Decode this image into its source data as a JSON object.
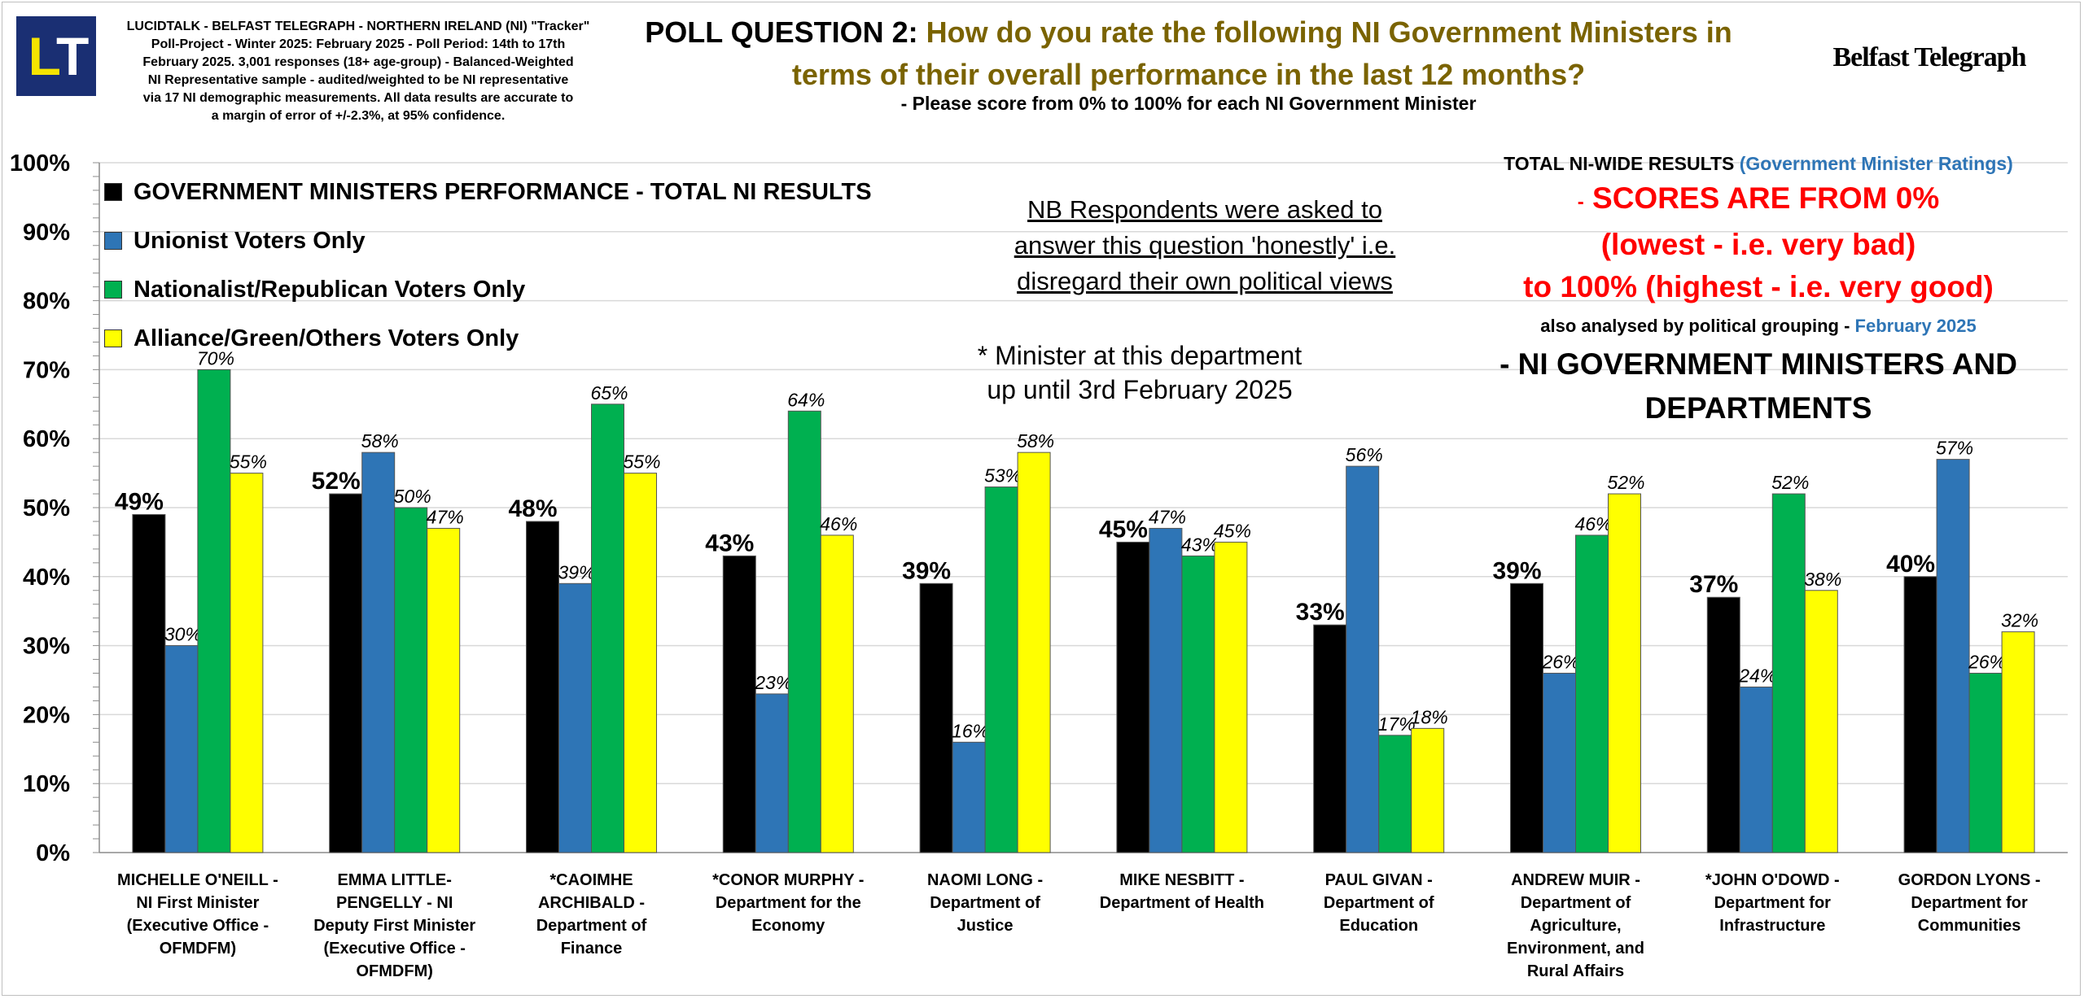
{
  "header": {
    "logo_text": "LT",
    "meta_lines": [
      "LUCIDTALK - BELFAST TELEGRAPH - NORTHERN IRELAND (NI) \"Tracker\"",
      "Poll-Project - Winter 2025: February 2025 - Poll Period: 14th to 17th",
      "February 2025. 3,001 responses (18+ age-group) - Balanced-Weighted",
      "NI Representative sample - audited/weighted to be NI representative",
      "via 17 NI demographic measurements. All data results are accurate to",
      "a margin of error of +/-2.3%, at 95% confidence."
    ],
    "question_lead": "POLL QUESTION 2:",
    "question_text": "How do you rate the following NI Government Ministers in terms of their overall performance in the last 12 months?",
    "subquestion": "- Please score from 0% to 100% for each NI Government Minister",
    "brand": "Belfast Telegraph"
  },
  "legend": [
    {
      "label": "GOVERNMENT MINISTERS PERFORMANCE - TOTAL NI RESULTS",
      "color": "#000000"
    },
    {
      "label": "Unionist Voters Only",
      "color": "#2e75b6"
    },
    {
      "label": "Nationalist/Republican Voters Only",
      "color": "#00b050"
    },
    {
      "label": "Alliance/Green/Others Voters Only",
      "color": "#ffff00"
    }
  ],
  "notes": {
    "nb_lines": [
      "NB Respondents were asked to",
      "answer this question 'honestly' i.e.",
      "disregard their own political views"
    ],
    "minister_lines": [
      "* Minister at this department",
      "up until 3rd February 2025"
    ]
  },
  "right_panel": {
    "total_prefix": "TOTAL NI-WIDE RESULTS",
    "total_blue": "(Government Minister  Ratings)",
    "red_dash": "-",
    "red_line1": "SCORES ARE FROM 0%",
    "red_line2": "(lowest - i.e. very bad)",
    "red_line3": "to 100% (highest - i.e. very good)",
    "also_prefix": "also analysed by political grouping -",
    "also_blue": "February 2025",
    "dept_line1": "- NI GOVERNMENT MINISTERS AND",
    "dept_line2": "DEPARTMENTS"
  },
  "chart_data": {
    "type": "bar",
    "ylim": [
      0,
      100
    ],
    "yticks": [
      "0%",
      "10%",
      "20%",
      "30%",
      "40%",
      "50%",
      "60%",
      "70%",
      "80%",
      "90%",
      "100%"
    ],
    "grid": true,
    "categories": [
      [
        "MICHELLE O'NEILL -",
        "NI First Minister",
        "(Executive Office -",
        "OFMDFM)"
      ],
      [
        "EMMA LITTLE-",
        "PENGELLY - NI",
        "Deputy First Minister",
        "(Executive Office -",
        "OFMDFM)"
      ],
      [
        "*CAOIMHE",
        "ARCHIBALD -",
        "Department of",
        "Finance"
      ],
      [
        "*CONOR MURPHY -",
        "Department for the",
        "Economy"
      ],
      [
        "NAOMI LONG -",
        "Department of",
        "Justice"
      ],
      [
        "MIKE NESBITT -",
        "Department of Health"
      ],
      [
        "PAUL GIVAN -",
        "Department of",
        "Education"
      ],
      [
        "ANDREW MUIR -",
        "Department of",
        "Agriculture,",
        "Environment, and",
        "Rural Affairs"
      ],
      [
        "*JOHN O'DOWD -",
        "Department for",
        "Infrastructure"
      ],
      [
        "GORDON LYONS -",
        "Department for",
        "Communities"
      ]
    ],
    "series": [
      {
        "name": "GOVERNMENT MINISTERS PERFORMANCE - TOTAL NI RESULTS",
        "color": "#000000",
        "values": [
          49,
          52,
          48,
          43,
          39,
          45,
          33,
          39,
          37,
          40
        ]
      },
      {
        "name": "Unionist Voters Only",
        "color": "#2e75b6",
        "values": [
          30,
          58,
          39,
          23,
          16,
          47,
          56,
          26,
          24,
          57
        ]
      },
      {
        "name": "Nationalist/Republican Voters Only",
        "color": "#00b050",
        "values": [
          70,
          50,
          65,
          64,
          53,
          43,
          17,
          46,
          52,
          26
        ]
      },
      {
        "name": "Alliance/Green/Others Voters Only",
        "color": "#ffff00",
        "values": [
          55,
          47,
          55,
          46,
          58,
          45,
          18,
          52,
          38,
          32
        ]
      }
    ]
  }
}
